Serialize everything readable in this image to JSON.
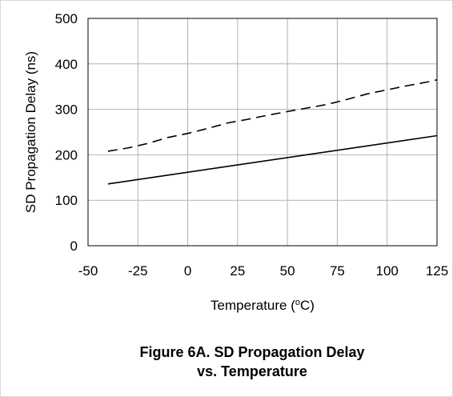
{
  "chart_data": {
    "type": "line",
    "xlabel": "Temperature (°C)",
    "xlabel_parts": {
      "prefix": "Temperature (",
      "superscript": "o",
      "suffix": "C)"
    },
    "ylabel": "SD Propagation Delay (ns)",
    "xlim": [
      -50,
      125
    ],
    "ylim": [
      0,
      500
    ],
    "xticks": [
      -50,
      -25,
      0,
      25,
      50,
      75,
      100,
      125
    ],
    "yticks": [
      0,
      100,
      200,
      300,
      400,
      500
    ],
    "grid": true,
    "series": [
      {
        "style": "dashed",
        "x": [
          -40,
          -30,
          -20,
          -10,
          0,
          10,
          20,
          30,
          40,
          50,
          60,
          70,
          80,
          90,
          100,
          110,
          120,
          125
        ],
        "y": [
          208,
          215,
          225,
          238,
          247,
          258,
          270,
          278,
          287,
          295,
          303,
          311,
          322,
          334,
          343,
          352,
          360,
          365
        ]
      },
      {
        "style": "solid",
        "x": [
          -40,
          125
        ],
        "y": [
          136,
          242
        ]
      }
    ]
  },
  "caption": {
    "line1": "Figure 6A. SD Propagation Delay",
    "line2": "vs. Temperature"
  }
}
